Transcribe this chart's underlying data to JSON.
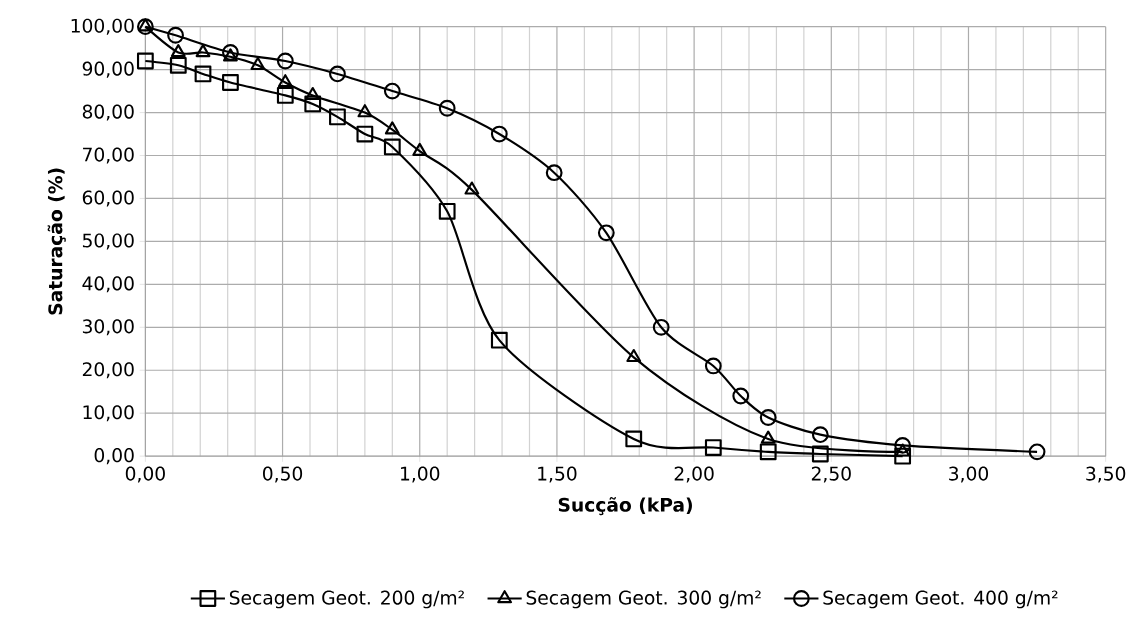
{
  "chart_data": {
    "type": "line",
    "xlabel": "Sucção (kPa)",
    "ylabel": "Saturação (%)",
    "xlim": [
      0,
      3.5
    ],
    "ylim": [
      0,
      100
    ],
    "xticks": [
      {
        "value": 0,
        "label": "0,00"
      },
      {
        "value": 0.5,
        "label": "0,50"
      },
      {
        "value": 1,
        "label": "1,00"
      },
      {
        "value": 1.5,
        "label": "1,50"
      },
      {
        "value": 2,
        "label": "2,00"
      },
      {
        "value": 2.5,
        "label": "2,50"
      },
      {
        "value": 3,
        "label": "3,00"
      },
      {
        "value": 3.5,
        "label": "3,50"
      }
    ],
    "yticks": [
      {
        "value": 0,
        "label": "0,00"
      },
      {
        "value": 10,
        "label": "10,00"
      },
      {
        "value": 20,
        "label": "20,00"
      },
      {
        "value": 30,
        "label": "30,00"
      },
      {
        "value": 40,
        "label": "40,00"
      },
      {
        "value": 50,
        "label": "50,00"
      },
      {
        "value": 60,
        "label": "60,00"
      },
      {
        "value": 70,
        "label": "70,00"
      },
      {
        "value": 80,
        "label": "80,00"
      },
      {
        "value": 90,
        "label": "90,00"
      },
      {
        "value": 100,
        "label": "100,00"
      }
    ],
    "grid": true,
    "legend": "bottom",
    "series": [
      {
        "name": "Secagem Geot. 200 g/m²",
        "color": "#000000",
        "marker": "square",
        "x": [
          0,
          0.12,
          0.21,
          0.31,
          0.51,
          0.61,
          0.7,
          0.8,
          0.9,
          1.1,
          1.29,
          1.78,
          2.07,
          2.27,
          2.46,
          2.76
        ],
        "values": [
          92,
          91,
          89,
          87,
          84,
          82,
          79,
          75,
          72,
          57,
          27,
          4,
          2,
          1,
          0.5,
          0
        ]
      },
      {
        "name": "Secagem Geot. 300 g/m²",
        "color": "#000000",
        "marker": "triangle",
        "x": [
          0,
          0.12,
          0.21,
          0.31,
          0.41,
          0.51,
          0.61,
          0.8,
          0.9,
          1,
          1.19,
          1.78,
          2.27,
          2.76
        ],
        "values": [
          100,
          94,
          94,
          93,
          91,
          87,
          84,
          80,
          76,
          71,
          62,
          23,
          4,
          1
        ]
      },
      {
        "name": "Secagem Geot. 400 g/m²",
        "color": "#000000",
        "marker": "circle",
        "x": [
          0,
          0.11,
          0.31,
          0.51,
          0.7,
          0.9,
          1.1,
          1.29,
          1.49,
          1.68,
          1.88,
          2.07,
          2.17,
          2.27,
          2.46,
          2.76,
          3.25
        ],
        "values": [
          100,
          98,
          94,
          92,
          89,
          85,
          81,
          75,
          66,
          52,
          30,
          21,
          14,
          9,
          5,
          2.5,
          1
        ]
      }
    ]
  }
}
